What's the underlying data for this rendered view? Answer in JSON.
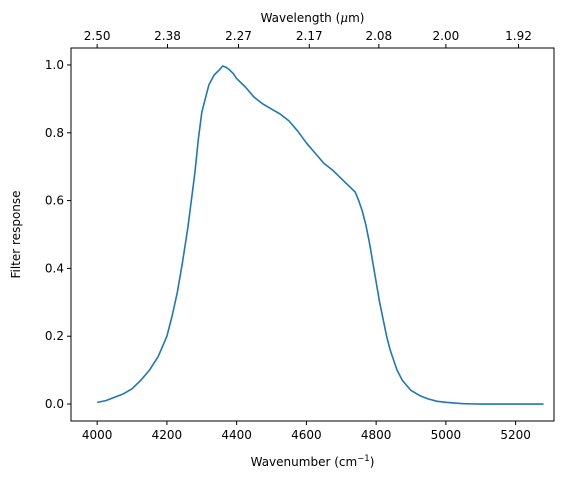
{
  "chart_data": {
    "type": "line",
    "title": "",
    "xlabel": "Wavenumber (cm",
    "xlabel_sup": "−1",
    "xlabel_close": ")",
    "ylabel": "Filter response",
    "x2label_prefix": "Wavelength (",
    "x2label_mu": "μ",
    "x2label_suffix": "m)",
    "xlim": [
      3925,
      5310
    ],
    "ylim": [
      -0.05,
      1.05
    ],
    "xticks": [
      4000,
      4200,
      4400,
      4600,
      4800,
      5000,
      5200
    ],
    "yticks": [
      0.0,
      0.2,
      0.4,
      0.6,
      0.8,
      1.0
    ],
    "ytick_labels": [
      "0.0",
      "0.2",
      "0.4",
      "0.6",
      "0.8",
      "1.0"
    ],
    "x2ticks": [
      {
        "wavenumber": 4000,
        "label": "2.50"
      },
      {
        "wavenumber": 4201.7,
        "label": "2.38"
      },
      {
        "wavenumber": 4405.3,
        "label": "2.27"
      },
      {
        "wavenumber": 4608.3,
        "label": "2.17"
      },
      {
        "wavenumber": 4807.7,
        "label": "2.08"
      },
      {
        "wavenumber": 5000,
        "label": "2.00"
      },
      {
        "wavenumber": 5208.3,
        "label": "1.92"
      }
    ],
    "grid": false,
    "line_color": "#1f77b4",
    "series": [
      {
        "x": [
          4000,
          4025,
          4050,
          4075,
          4100,
          4125,
          4150,
          4175,
          4200,
          4215,
          4230,
          4245,
          4260,
          4270,
          4280,
          4290,
          4300,
          4310,
          4320,
          4335,
          4350,
          4360,
          4370,
          4380,
          4390,
          4400,
          4425,
          4450,
          4475,
          4500,
          4525,
          4550,
          4575,
          4600,
          4625,
          4650,
          4675,
          4700,
          4720,
          4740,
          4750,
          4760,
          4770,
          4780,
          4790,
          4800,
          4810,
          4820,
          4830,
          4840,
          4850,
          4860,
          4875,
          4900,
          4925,
          4950,
          4975,
          5000,
          5025,
          5050,
          5075,
          5100,
          5150,
          5200,
          5250,
          5280
        ],
        "y": [
          0.005,
          0.01,
          0.02,
          0.03,
          0.045,
          0.07,
          0.1,
          0.14,
          0.2,
          0.26,
          0.33,
          0.42,
          0.52,
          0.6,
          0.68,
          0.78,
          0.86,
          0.9,
          0.94,
          0.97,
          0.985,
          0.997,
          0.993,
          0.985,
          0.975,
          0.96,
          0.935,
          0.905,
          0.885,
          0.87,
          0.855,
          0.835,
          0.805,
          0.77,
          0.74,
          0.71,
          0.69,
          0.665,
          0.645,
          0.625,
          0.6,
          0.57,
          0.53,
          0.48,
          0.42,
          0.36,
          0.3,
          0.25,
          0.2,
          0.16,
          0.13,
          0.1,
          0.07,
          0.04,
          0.025,
          0.015,
          0.008,
          0.005,
          0.003,
          0.001,
          0.0005,
          0.0,
          0.0,
          0.0,
          0.0,
          0.0
        ]
      }
    ]
  }
}
